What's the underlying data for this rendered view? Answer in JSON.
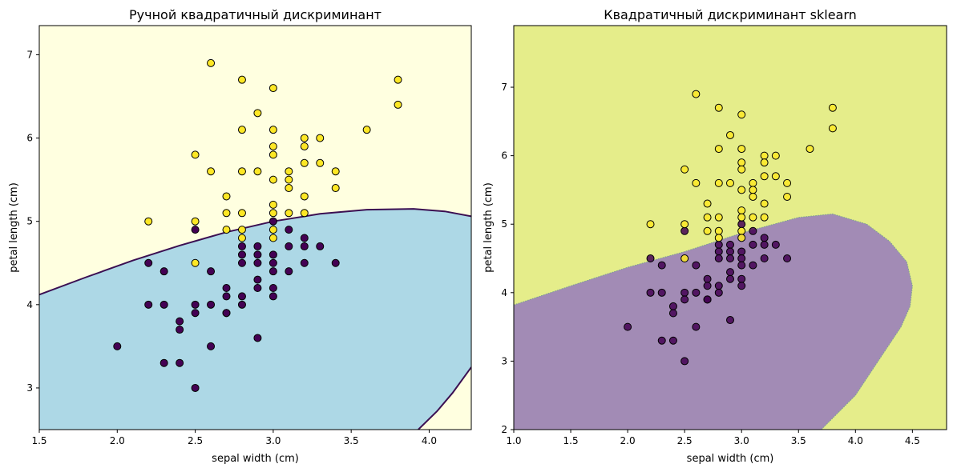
{
  "chart_data": [
    {
      "type": "scatter",
      "title": "Ручной квадратичный дискриминант",
      "xlabel": "sepal width (cm)",
      "ylabel": "petal length (cm)",
      "xlim": [
        1.5,
        4.27
      ],
      "ylim": [
        2.5,
        7.35
      ],
      "xticks": [
        "1.5",
        "2.0",
        "2.5",
        "3.0",
        "3.5",
        "4.0"
      ],
      "yticks": [
        "3",
        "4",
        "5",
        "6",
        "7"
      ],
      "region_colors": {
        "class_1": "#add8e6",
        "class_2": "#ffffe0"
      },
      "boundary_color": "#3b0f52",
      "boundary_upper": {
        "x": [
          1.5,
          1.8,
          2.1,
          2.4,
          2.7,
          3.0,
          3.3,
          3.6,
          3.9,
          4.1,
          4.27
        ],
        "y": [
          4.12,
          4.33,
          4.53,
          4.71,
          4.87,
          5.0,
          5.09,
          5.14,
          5.15,
          5.12,
          5.06
        ]
      },
      "boundary_lower": {
        "x": [
          3.93,
          4.05,
          4.15,
          4.27
        ],
        "y": [
          2.5,
          2.72,
          2.94,
          3.25
        ]
      },
      "series": [
        {
          "color": "#440154",
          "points": [
            [
              2.0,
              3.5
            ],
            [
              2.2,
              4.5
            ],
            [
              2.2,
              4.0
            ],
            [
              2.3,
              4.4
            ],
            [
              2.3,
              4.0
            ],
            [
              2.3,
              3.3
            ],
            [
              2.4,
              3.8
            ],
            [
              2.4,
              3.7
            ],
            [
              2.4,
              3.3
            ],
            [
              2.5,
              4.9
            ],
            [
              2.5,
              4.0
            ],
            [
              2.5,
              3.9
            ],
            [
              2.5,
              3.0
            ],
            [
              2.6,
              4.4
            ],
            [
              2.6,
              4.0
            ],
            [
              2.6,
              3.5
            ],
            [
              2.7,
              4.2
            ],
            [
              2.7,
              4.1
            ],
            [
              2.7,
              3.9
            ],
            [
              2.7,
              3.9
            ],
            [
              2.8,
              4.7
            ],
            [
              2.8,
              4.6
            ],
            [
              2.8,
              4.5
            ],
            [
              2.8,
              4.1
            ],
            [
              2.8,
              4.0
            ],
            [
              2.9,
              4.7
            ],
            [
              2.9,
              4.6
            ],
            [
              2.9,
              4.5
            ],
            [
              2.9,
              4.3
            ],
            [
              2.9,
              4.2
            ],
            [
              2.9,
              3.6
            ],
            [
              3.0,
              5.0
            ],
            [
              3.0,
              4.6
            ],
            [
              3.0,
              4.5
            ],
            [
              3.0,
              4.4
            ],
            [
              3.0,
              4.2
            ],
            [
              3.0,
              4.1
            ],
            [
              3.1,
              4.9
            ],
            [
              3.1,
              4.7
            ],
            [
              3.1,
              4.4
            ],
            [
              3.2,
              4.8
            ],
            [
              3.2,
              4.7
            ],
            [
              3.2,
              4.5
            ],
            [
              3.3,
              4.7
            ],
            [
              3.4,
              4.5
            ]
          ]
        },
        {
          "color": "#fde725",
          "points": [
            [
              2.2,
              5.0
            ],
            [
              2.5,
              5.8
            ],
            [
              2.5,
              5.0
            ],
            [
              2.5,
              4.5
            ],
            [
              2.6,
              6.9
            ],
            [
              2.6,
              5.6
            ],
            [
              2.7,
              5.3
            ],
            [
              2.7,
              5.1
            ],
            [
              2.7,
              4.9
            ],
            [
              2.8,
              6.7
            ],
            [
              2.8,
              6.1
            ],
            [
              2.8,
              5.6
            ],
            [
              2.8,
              5.1
            ],
            [
              2.8,
              4.9
            ],
            [
              2.8,
              4.8
            ],
            [
              2.9,
              6.3
            ],
            [
              2.9,
              5.6
            ],
            [
              3.0,
              6.6
            ],
            [
              3.0,
              6.1
            ],
            [
              3.0,
              5.9
            ],
            [
              3.0,
              5.8
            ],
            [
              3.0,
              5.5
            ],
            [
              3.0,
              5.2
            ],
            [
              3.0,
              5.1
            ],
            [
              3.0,
              4.9
            ],
            [
              3.0,
              4.8
            ],
            [
              3.1,
              5.6
            ],
            [
              3.1,
              5.5
            ],
            [
              3.1,
              5.4
            ],
            [
              3.1,
              5.1
            ],
            [
              3.2,
              6.0
            ],
            [
              3.2,
              5.9
            ],
            [
              3.2,
              5.7
            ],
            [
              3.2,
              5.3
            ],
            [
              3.2,
              5.1
            ],
            [
              3.3,
              6.0
            ],
            [
              3.3,
              5.7
            ],
            [
              3.4,
              5.6
            ],
            [
              3.4,
              5.4
            ],
            [
              3.6,
              6.1
            ],
            [
              3.8,
              6.7
            ],
            [
              3.8,
              6.4
            ]
          ]
        }
      ]
    },
    {
      "type": "scatter",
      "title": "Квадратичный дискриминант sklearn",
      "xlabel": "sepal width (cm)",
      "ylabel": "petal length (cm)",
      "xlim": [
        1.0,
        4.8
      ],
      "ylim": [
        2.0,
        7.9
      ],
      "xticks": [
        "1.0",
        "1.5",
        "2.0",
        "2.5",
        "3.0",
        "3.5",
        "4.0",
        "4.5"
      ],
      "yticks": [
        "2",
        "3",
        "4",
        "5",
        "6",
        "7"
      ],
      "region_colors": {
        "class_1": "#a28bb5",
        "class_2": "#e5ed8a"
      },
      "ellipse_boundary": {
        "x": [
          1.0,
          1.5,
          2.0,
          2.5,
          3.0,
          3.5,
          3.8,
          4.1,
          4.3,
          4.45,
          4.5,
          4.48,
          4.4,
          4.2,
          4.0,
          3.7
        ],
        "y": [
          3.82,
          4.1,
          4.37,
          4.6,
          4.87,
          5.1,
          5.15,
          5.0,
          4.75,
          4.45,
          4.1,
          3.8,
          3.5,
          3.0,
          2.5,
          2.0
        ]
      },
      "series": [
        {
          "color": "#440154",
          "points": [
            [
              2.0,
              3.5
            ],
            [
              2.2,
              4.5
            ],
            [
              2.2,
              4.0
            ],
            [
              2.3,
              4.4
            ],
            [
              2.3,
              4.0
            ],
            [
              2.3,
              3.3
            ],
            [
              2.4,
              3.8
            ],
            [
              2.4,
              3.7
            ],
            [
              2.4,
              3.3
            ],
            [
              2.5,
              4.9
            ],
            [
              2.5,
              4.0
            ],
            [
              2.5,
              3.9
            ],
            [
              2.5,
              3.0
            ],
            [
              2.6,
              4.4
            ],
            [
              2.6,
              4.0
            ],
            [
              2.6,
              3.5
            ],
            [
              2.7,
              4.2
            ],
            [
              2.7,
              4.1
            ],
            [
              2.7,
              3.9
            ],
            [
              2.7,
              3.9
            ],
            [
              2.8,
              4.7
            ],
            [
              2.8,
              4.6
            ],
            [
              2.8,
              4.5
            ],
            [
              2.8,
              4.1
            ],
            [
              2.8,
              4.0
            ],
            [
              2.9,
              4.7
            ],
            [
              2.9,
              4.6
            ],
            [
              2.9,
              4.5
            ],
            [
              2.9,
              4.3
            ],
            [
              2.9,
              4.2
            ],
            [
              2.9,
              3.6
            ],
            [
              3.0,
              5.0
            ],
            [
              3.0,
              4.6
            ],
            [
              3.0,
              4.5
            ],
            [
              3.0,
              4.4
            ],
            [
              3.0,
              4.2
            ],
            [
              3.0,
              4.1
            ],
            [
              3.1,
              4.9
            ],
            [
              3.1,
              4.7
            ],
            [
              3.1,
              4.4
            ],
            [
              3.2,
              4.8
            ],
            [
              3.2,
              4.7
            ],
            [
              3.2,
              4.5
            ],
            [
              3.3,
              4.7
            ],
            [
              3.4,
              4.5
            ]
          ]
        },
        {
          "color": "#fde725",
          "points": [
            [
              2.2,
              5.0
            ],
            [
              2.5,
              5.8
            ],
            [
              2.5,
              5.0
            ],
            [
              2.5,
              4.5
            ],
            [
              2.6,
              6.9
            ],
            [
              2.6,
              5.6
            ],
            [
              2.7,
              5.3
            ],
            [
              2.7,
              5.1
            ],
            [
              2.7,
              4.9
            ],
            [
              2.8,
              6.7
            ],
            [
              2.8,
              6.1
            ],
            [
              2.8,
              5.6
            ],
            [
              2.8,
              5.1
            ],
            [
              2.8,
              4.9
            ],
            [
              2.8,
              4.8
            ],
            [
              2.9,
              6.3
            ],
            [
              2.9,
              5.6
            ],
            [
              3.0,
              6.6
            ],
            [
              3.0,
              6.1
            ],
            [
              3.0,
              5.9
            ],
            [
              3.0,
              5.8
            ],
            [
              3.0,
              5.5
            ],
            [
              3.0,
              5.2
            ],
            [
              3.0,
              5.1
            ],
            [
              3.0,
              4.9
            ],
            [
              3.0,
              4.8
            ],
            [
              3.1,
              5.6
            ],
            [
              3.1,
              5.5
            ],
            [
              3.1,
              5.4
            ],
            [
              3.1,
              5.1
            ],
            [
              3.2,
              6.0
            ],
            [
              3.2,
              5.9
            ],
            [
              3.2,
              5.7
            ],
            [
              3.2,
              5.3
            ],
            [
              3.2,
              5.1
            ],
            [
              3.3,
              6.0
            ],
            [
              3.3,
              5.7
            ],
            [
              3.4,
              5.6
            ],
            [
              3.4,
              5.4
            ],
            [
              3.6,
              6.1
            ],
            [
              3.8,
              6.7
            ],
            [
              3.8,
              6.4
            ]
          ]
        }
      ]
    }
  ]
}
